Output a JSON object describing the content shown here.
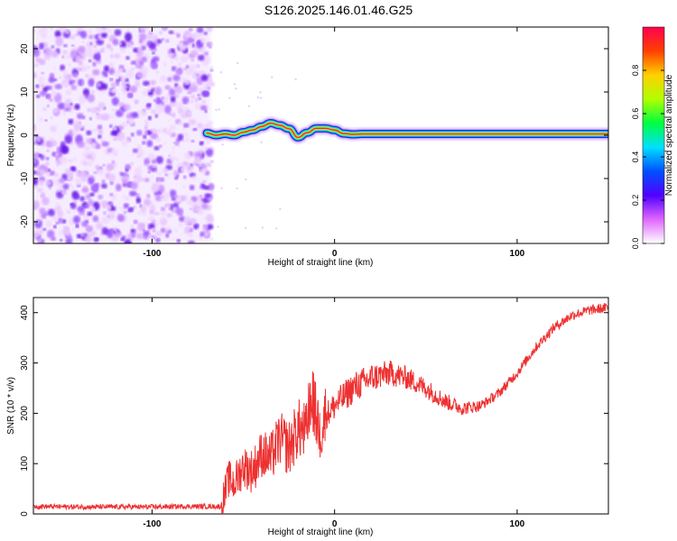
{
  "title": "S126.2025.146.01.46.G25",
  "chart_data": [
    {
      "type": "heatmap",
      "xlabel": "Height of straight line (km)",
      "ylabel": "Frequency (Hz)",
      "xlim": [
        -165,
        150
      ],
      "ylim": [
        -25,
        25
      ],
      "xticks": [
        -100,
        0,
        100
      ],
      "yticks": [
        -20,
        -10,
        0,
        10,
        20
      ],
      "colorbar": {
        "label": "Normalized spectral amplitude",
        "range": [
          0,
          1
        ],
        "ticks": [
          0.0,
          0.2,
          0.4,
          0.6,
          0.8
        ],
        "colors": [
          "#ffffff",
          "#e066ff",
          "#5000ff",
          "#0050ff",
          "#00e0ff",
          "#00ff40",
          "#b0ff00",
          "#ffd000",
          "#ff4000",
          "#ff0050"
        ]
      },
      "noise_region": {
        "x": [
          -165,
          -70
        ],
        "y": [
          -25,
          25
        ]
      },
      "signal_trace": {
        "x": [
          -70,
          -65,
          -60,
          -55,
          -50,
          -45,
          -40,
          -35,
          -30,
          -25,
          -20,
          -15,
          -10,
          -5,
          0,
          5,
          10,
          15,
          20,
          40,
          60,
          80,
          100,
          120,
          150
        ],
        "freq": [
          0.5,
          0.0,
          0.3,
          0.0,
          0.7,
          1.2,
          2.0,
          2.8,
          2.3,
          1.5,
          -0.5,
          0.6,
          1.6,
          1.6,
          1.2,
          0.4,
          0.2,
          0.3,
          0.3,
          0.3,
          0.3,
          0.3,
          0.3,
          0.3,
          0.3
        ]
      }
    },
    {
      "type": "line",
      "xlabel": "Height of straight line (km)",
      "ylabel": "SNR (10 * v/v)",
      "xlim": [
        -165,
        150
      ],
      "ylim": [
        0,
        430
      ],
      "xticks": [
        -100,
        0,
        100
      ],
      "yticks": [
        0,
        100,
        200,
        300,
        400
      ],
      "color": "#ee3030",
      "series": [
        {
          "x": [
            -165,
            -140,
            -120,
            -100,
            -80,
            -62,
            -58,
            -55,
            -50,
            -45,
            -40,
            -35,
            -30,
            -25,
            -20,
            -15,
            -12,
            -10,
            -8,
            -5,
            0,
            10,
            20,
            30,
            40,
            50,
            60,
            70,
            80,
            90,
            100,
            110,
            120,
            130,
            140,
            150
          ],
          "y": [
            15,
            14,
            14,
            14,
            15,
            15,
            70,
            60,
            95,
            85,
            120,
            110,
            150,
            130,
            170,
            160,
            230,
            190,
            170,
            195,
            215,
            250,
            270,
            280,
            270,
            250,
            225,
            210,
            215,
            240,
            280,
            330,
            370,
            395,
            405,
            410
          ]
        }
      ]
    }
  ]
}
